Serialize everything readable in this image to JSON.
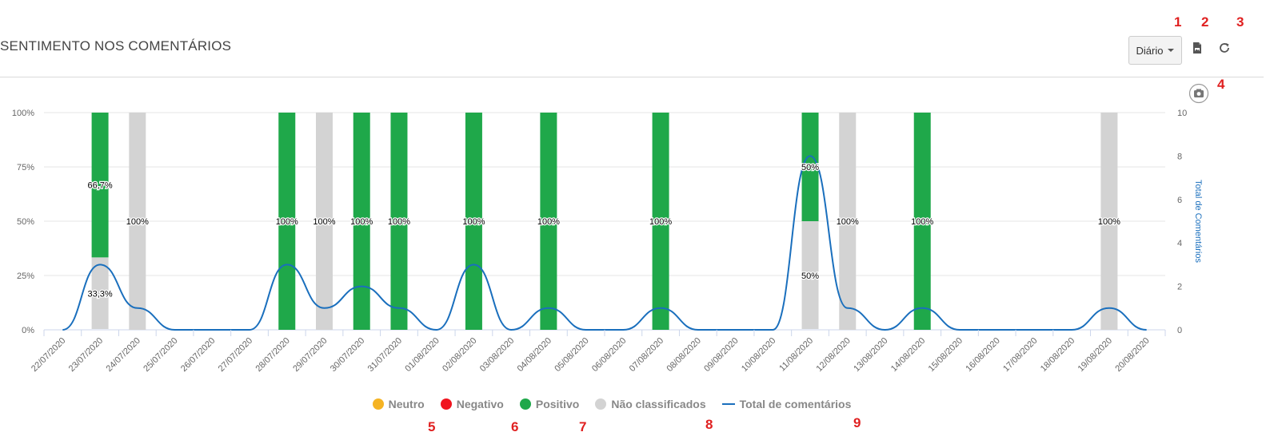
{
  "header": {
    "title": "SENTIMENTO NOS COMENTÁRIOS",
    "period_label": "Diário",
    "export_icon": "export-image-icon",
    "refresh_icon": "refresh-icon",
    "screenshot_icon": "camera-icon"
  },
  "annotations": [
    "1",
    "2",
    "3",
    "4",
    "5",
    "6",
    "7",
    "8",
    "9"
  ],
  "colors": {
    "neutro": "#f5b323",
    "negativo": "#f0141e",
    "positivo": "#1fa84a",
    "nao_classificados": "#d3d3d3",
    "total": "#1a6fbd"
  },
  "legend": {
    "neutro": "Neutro",
    "negativo": "Negativo",
    "positivo": "Positivo",
    "nao_classificados": "Não classificados",
    "total": "Total de comentários"
  },
  "chart_data": {
    "type": "bar",
    "title": "SENTIMENTO NOS COMENTÁRIOS",
    "stacked": "percent",
    "categories": [
      "22/07/2020",
      "23/07/2020",
      "24/07/2020",
      "25/07/2020",
      "26/07/2020",
      "27/07/2020",
      "28/07/2020",
      "29/07/2020",
      "30/07/2020",
      "31/07/2020",
      "01/08/2020",
      "02/08/2020",
      "03/08/2020",
      "04/08/2020",
      "05/08/2020",
      "06/08/2020",
      "07/08/2020",
      "08/08/2020",
      "09/08/2020",
      "10/08/2020",
      "11/08/2020",
      "12/08/2020",
      "13/08/2020",
      "14/08/2020",
      "15/08/2020",
      "16/08/2020",
      "17/08/2020",
      "18/08/2020",
      "19/08/2020",
      "20/08/2020"
    ],
    "series": [
      {
        "name": "Neutro",
        "key": "neutro",
        "values": [
          0,
          0,
          0,
          0,
          0,
          0,
          0,
          0,
          0,
          0,
          0,
          0,
          0,
          0,
          0,
          0,
          0,
          0,
          0,
          0,
          0,
          0,
          0,
          0,
          0,
          0,
          0,
          0,
          0,
          0
        ]
      },
      {
        "name": "Negativo",
        "key": "negativo",
        "values": [
          0,
          0,
          0,
          0,
          0,
          0,
          0,
          0,
          0,
          0,
          0,
          0,
          0,
          0,
          0,
          0,
          0,
          0,
          0,
          0,
          0,
          0,
          0,
          0,
          0,
          0,
          0,
          0,
          0,
          0
        ]
      },
      {
        "name": "Positivo",
        "key": "positivo",
        "values": [
          0,
          2,
          0,
          0,
          0,
          0,
          3,
          0,
          2,
          1,
          0,
          3,
          0,
          1,
          0,
          0,
          1,
          0,
          0,
          0,
          4,
          0,
          0,
          1,
          0,
          0,
          0,
          0,
          0,
          0
        ]
      },
      {
        "name": "Não classificados",
        "key": "nao_classificados",
        "values": [
          0,
          1,
          1,
          0,
          0,
          0,
          0,
          1,
          0,
          0,
          0,
          0,
          0,
          0,
          0,
          0,
          0,
          0,
          0,
          0,
          4,
          1,
          0,
          0,
          0,
          0,
          0,
          0,
          1,
          0
        ]
      }
    ],
    "line": {
      "name": "Total de comentários",
      "axis": "right",
      "values": [
        0,
        3,
        1,
        0,
        0,
        0,
        3,
        1,
        2,
        1,
        0,
        3,
        0,
        1,
        0,
        0,
        1,
        0,
        0,
        0,
        8,
        1,
        0,
        1,
        0,
        0,
        0,
        0,
        1,
        0
      ]
    },
    "data_labels": [
      {
        "category": "23/07/2020",
        "series": "positivo",
        "text": "66,7%"
      },
      {
        "category": "23/07/2020",
        "series": "nao_classificados",
        "text": "33,3%"
      },
      {
        "category": "24/07/2020",
        "series": "nao_classificados",
        "text": "100%"
      },
      {
        "category": "28/07/2020",
        "series": "positivo",
        "text": "100%"
      },
      {
        "category": "29/07/2020",
        "series": "nao_classificados",
        "text": "100%"
      },
      {
        "category": "30/07/2020",
        "series": "positivo",
        "text": "100%"
      },
      {
        "category": "31/07/2020",
        "series": "positivo",
        "text": "100%"
      },
      {
        "category": "02/08/2020",
        "series": "positivo",
        "text": "100%"
      },
      {
        "category": "04/08/2020",
        "series": "positivo",
        "text": "100%"
      },
      {
        "category": "07/08/2020",
        "series": "positivo",
        "text": "100%"
      },
      {
        "category": "11/08/2020",
        "series": "positivo",
        "text": "50%"
      },
      {
        "category": "11/08/2020",
        "series": "nao_classificados",
        "text": "50%"
      },
      {
        "category": "12/08/2020",
        "series": "nao_classificados",
        "text": "100%"
      },
      {
        "category": "14/08/2020",
        "series": "positivo",
        "text": "100%"
      },
      {
        "category": "19/08/2020",
        "series": "nao_classificados",
        "text": "100%"
      }
    ],
    "y_left": {
      "ticks": [
        "0%",
        "25%",
        "50%",
        "75%",
        "100%"
      ],
      "range": [
        0,
        100
      ]
    },
    "y_right": {
      "label": "Total de Comentários",
      "ticks": [
        "0",
        "2",
        "4",
        "6",
        "8",
        "10"
      ],
      "range": [
        0,
        10
      ]
    },
    "grid": true,
    "legend_position": "bottom-center"
  }
}
